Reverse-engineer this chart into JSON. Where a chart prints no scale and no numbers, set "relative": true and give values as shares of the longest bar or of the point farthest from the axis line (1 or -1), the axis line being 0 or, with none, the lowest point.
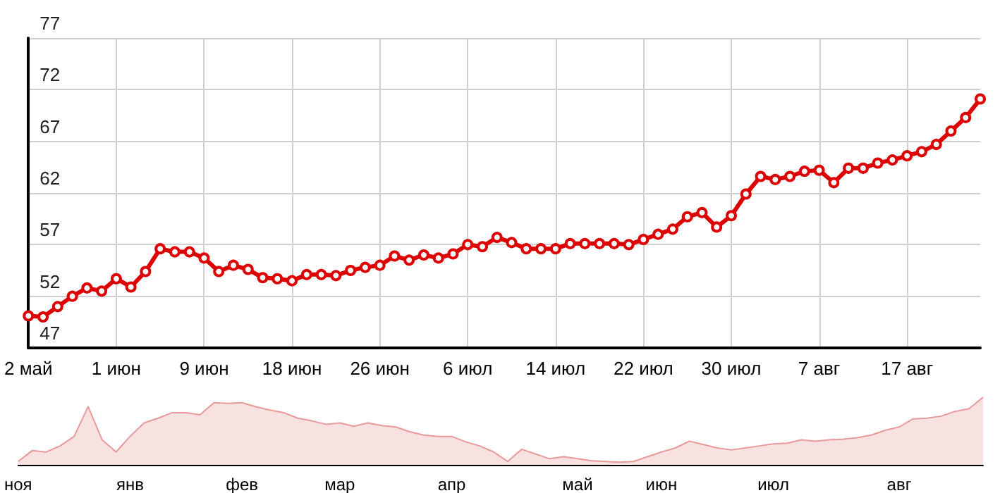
{
  "chart_data": [
    {
      "type": "line",
      "categories": [
        "2 май",
        null,
        null,
        null,
        null,
        null,
        "1 июн",
        null,
        null,
        null,
        null,
        null,
        "9 июн",
        null,
        null,
        null,
        null,
        null,
        "18 июн",
        null,
        null,
        null,
        null,
        null,
        "26 июн",
        null,
        null,
        null,
        null,
        null,
        "6 июл",
        null,
        null,
        null,
        null,
        null,
        "14 июл",
        null,
        null,
        null,
        null,
        null,
        "22 июл",
        null,
        null,
        null,
        null,
        null,
        "30 июл",
        null,
        null,
        null,
        null,
        null,
        "7 авг",
        null,
        null,
        null,
        null,
        null,
        "17 авг",
        null,
        null,
        null,
        null,
        null
      ],
      "series": [
        {
          "color": "#dd0000",
          "values": [
            50.1,
            50.0,
            51.0,
            52.0,
            52.8,
            52.5,
            53.7,
            52.9,
            54.4,
            56.6,
            56.3,
            56.3,
            55.7,
            54.4,
            55.0,
            54.6,
            53.8,
            53.7,
            53.5,
            54.1,
            54.1,
            54.0,
            54.5,
            54.8,
            55.0,
            55.9,
            55.5,
            56.0,
            55.7,
            56.1,
            57.0,
            56.8,
            57.7,
            57.2,
            56.6,
            56.6,
            56.6,
            57.1,
            57.1,
            57.1,
            57.1,
            57.0,
            57.5,
            58.0,
            58.5,
            59.7,
            60.1,
            58.7,
            59.8,
            61.9,
            63.6,
            63.3,
            63.6,
            64.1,
            64.2,
            63.0,
            64.4,
            64.4,
            64.9,
            65.2,
            65.6,
            66.0,
            66.7,
            68.0,
            69.3,
            71.1
          ]
        }
      ],
      "ylim": [
        47,
        77
      ],
      "yticks": [
        47,
        52,
        57,
        62,
        67,
        72,
        77
      ],
      "grid": true,
      "marker": "circle"
    },
    {
      "type": "area",
      "relative": true,
      "color": "#e89a9a",
      "categories": [
        "ноя",
        null,
        null,
        null,
        null,
        null,
        null,
        null,
        "янв",
        null,
        null,
        null,
        null,
        null,
        null,
        null,
        "фев",
        null,
        null,
        null,
        null,
        null,
        null,
        "мар",
        null,
        null,
        null,
        null,
        null,
        null,
        null,
        "апр",
        null,
        null,
        null,
        null,
        null,
        null,
        null,
        null,
        "май",
        null,
        null,
        null,
        null,
        null,
        "июн",
        null,
        null,
        null,
        null,
        null,
        null,
        null,
        "июл",
        null,
        null,
        null,
        null,
        null,
        null,
        null,
        null,
        "авг",
        null,
        null,
        null,
        null,
        null,
        null
      ],
      "values": [
        0.05,
        0.21,
        0.19,
        0.28,
        0.42,
        0.86,
        0.37,
        0.19,
        0.42,
        0.62,
        0.69,
        0.77,
        0.77,
        0.74,
        0.92,
        0.91,
        0.92,
        0.86,
        0.81,
        0.77,
        0.69,
        0.65,
        0.6,
        0.62,
        0.57,
        0.62,
        0.58,
        0.56,
        0.49,
        0.44,
        0.42,
        0.42,
        0.34,
        0.28,
        0.19,
        0.05,
        0.23,
        0.16,
        0.09,
        0.12,
        0.09,
        0.06,
        0.05,
        0.04,
        0.05,
        0.12,
        0.19,
        0.25,
        0.35,
        0.3,
        0.25,
        0.22,
        0.25,
        0.28,
        0.31,
        0.32,
        0.37,
        0.35,
        0.37,
        0.38,
        0.4,
        0.44,
        0.51,
        0.56,
        0.68,
        0.69,
        0.72,
        0.79,
        0.83,
        1
      ]
    }
  ]
}
